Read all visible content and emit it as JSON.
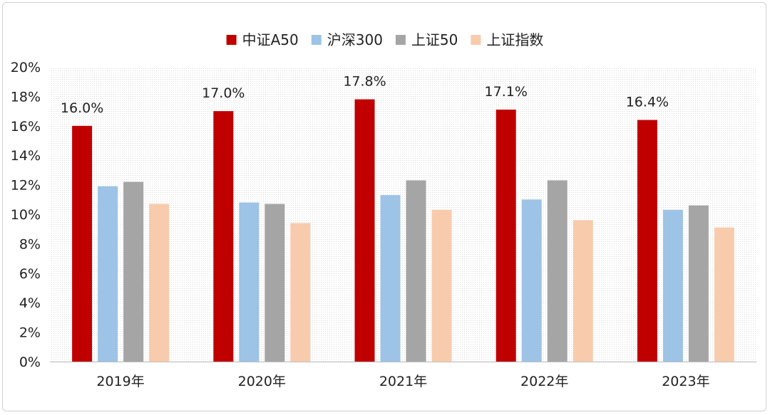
{
  "chart_data": {
    "type": "bar",
    "categories": [
      "2019年",
      "2020年",
      "2021年",
      "2022年",
      "2023年"
    ],
    "series": [
      {
        "name": "中证A50",
        "values": [
          16.0,
          17.0,
          17.8,
          17.1,
          16.4
        ],
        "color": "#C00000",
        "labels": [
          "16.0%",
          "17.0%",
          "17.8%",
          "17.1%",
          "16.4%"
        ]
      },
      {
        "name": "沪深300",
        "values": [
          11.9,
          10.8,
          11.3,
          11.0,
          10.3
        ],
        "color": "#9DC3E6"
      },
      {
        "name": "上证50",
        "values": [
          12.2,
          10.7,
          12.3,
          12.3,
          10.6
        ],
        "color": "#A5A5A5"
      },
      {
        "name": "上证指数",
        "values": [
          10.7,
          9.4,
          10.3,
          9.6,
          9.1
        ],
        "color": "#F8CBAD"
      }
    ],
    "ylim": [
      0,
      20
    ],
    "yticks": [
      "0%",
      "2%",
      "4%",
      "6%",
      "8%",
      "10%",
      "12%",
      "14%",
      "16%",
      "18%",
      "20%"
    ],
    "legend_position": "top-center",
    "grid": "dotted-background"
  }
}
